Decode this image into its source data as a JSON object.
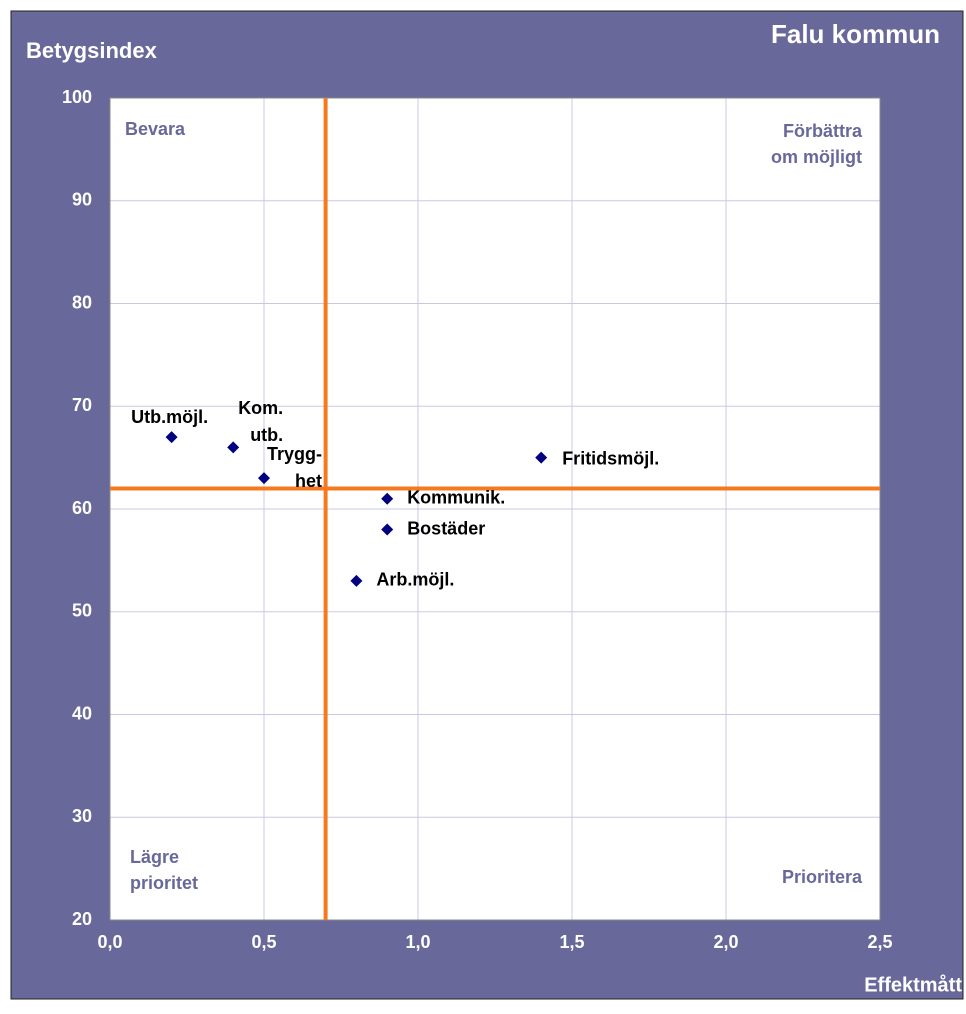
{
  "chart_data": {
    "type": "scatter",
    "title": "Falu kommun",
    "y_label": "Betygsindex",
    "x_label": "Effektmått",
    "x": [
      0.2,
      0.4,
      0.5,
      0.9,
      0.9,
      0.8,
      1.4
    ],
    "values": [
      67,
      66,
      63,
      61,
      58,
      53,
      65
    ],
    "point_labels": [
      [
        "Utb.möjl."
      ],
      [
        "Kom.",
        "utb."
      ],
      [
        "Trygg-",
        "het"
      ],
      [
        "Kommunik."
      ],
      [
        "Bostäder"
      ],
      [
        "Arb.möjl."
      ],
      [
        "Fritidsmöjl."
      ]
    ],
    "color": "#000080",
    "xlim": [
      0,
      2.5
    ],
    "ylim": [
      20,
      100
    ],
    "xticks": [
      {
        "value": 0,
        "label": "0,0"
      },
      {
        "value": 0.5,
        "label": "0,5"
      },
      {
        "value": 1,
        "label": "1,0"
      },
      {
        "value": 1.5,
        "label": "1,5"
      },
      {
        "value": 2,
        "label": "2,0"
      },
      {
        "value": 2.5,
        "label": "2,5"
      }
    ],
    "yticks": [
      20,
      30,
      40,
      50,
      60,
      70,
      80,
      90,
      100
    ],
    "grid": true,
    "reference_lines": {
      "x": 0.7,
      "y": 62,
      "color": "#f47a20"
    },
    "quadrant_labels": {
      "top_left": [
        "Bevara"
      ],
      "top_right": [
        "Förbättra",
        "om möjligt"
      ],
      "bottom_left": [
        "Lägre",
        "prioritet"
      ],
      "bottom_right": [
        "Prioritera"
      ]
    }
  }
}
